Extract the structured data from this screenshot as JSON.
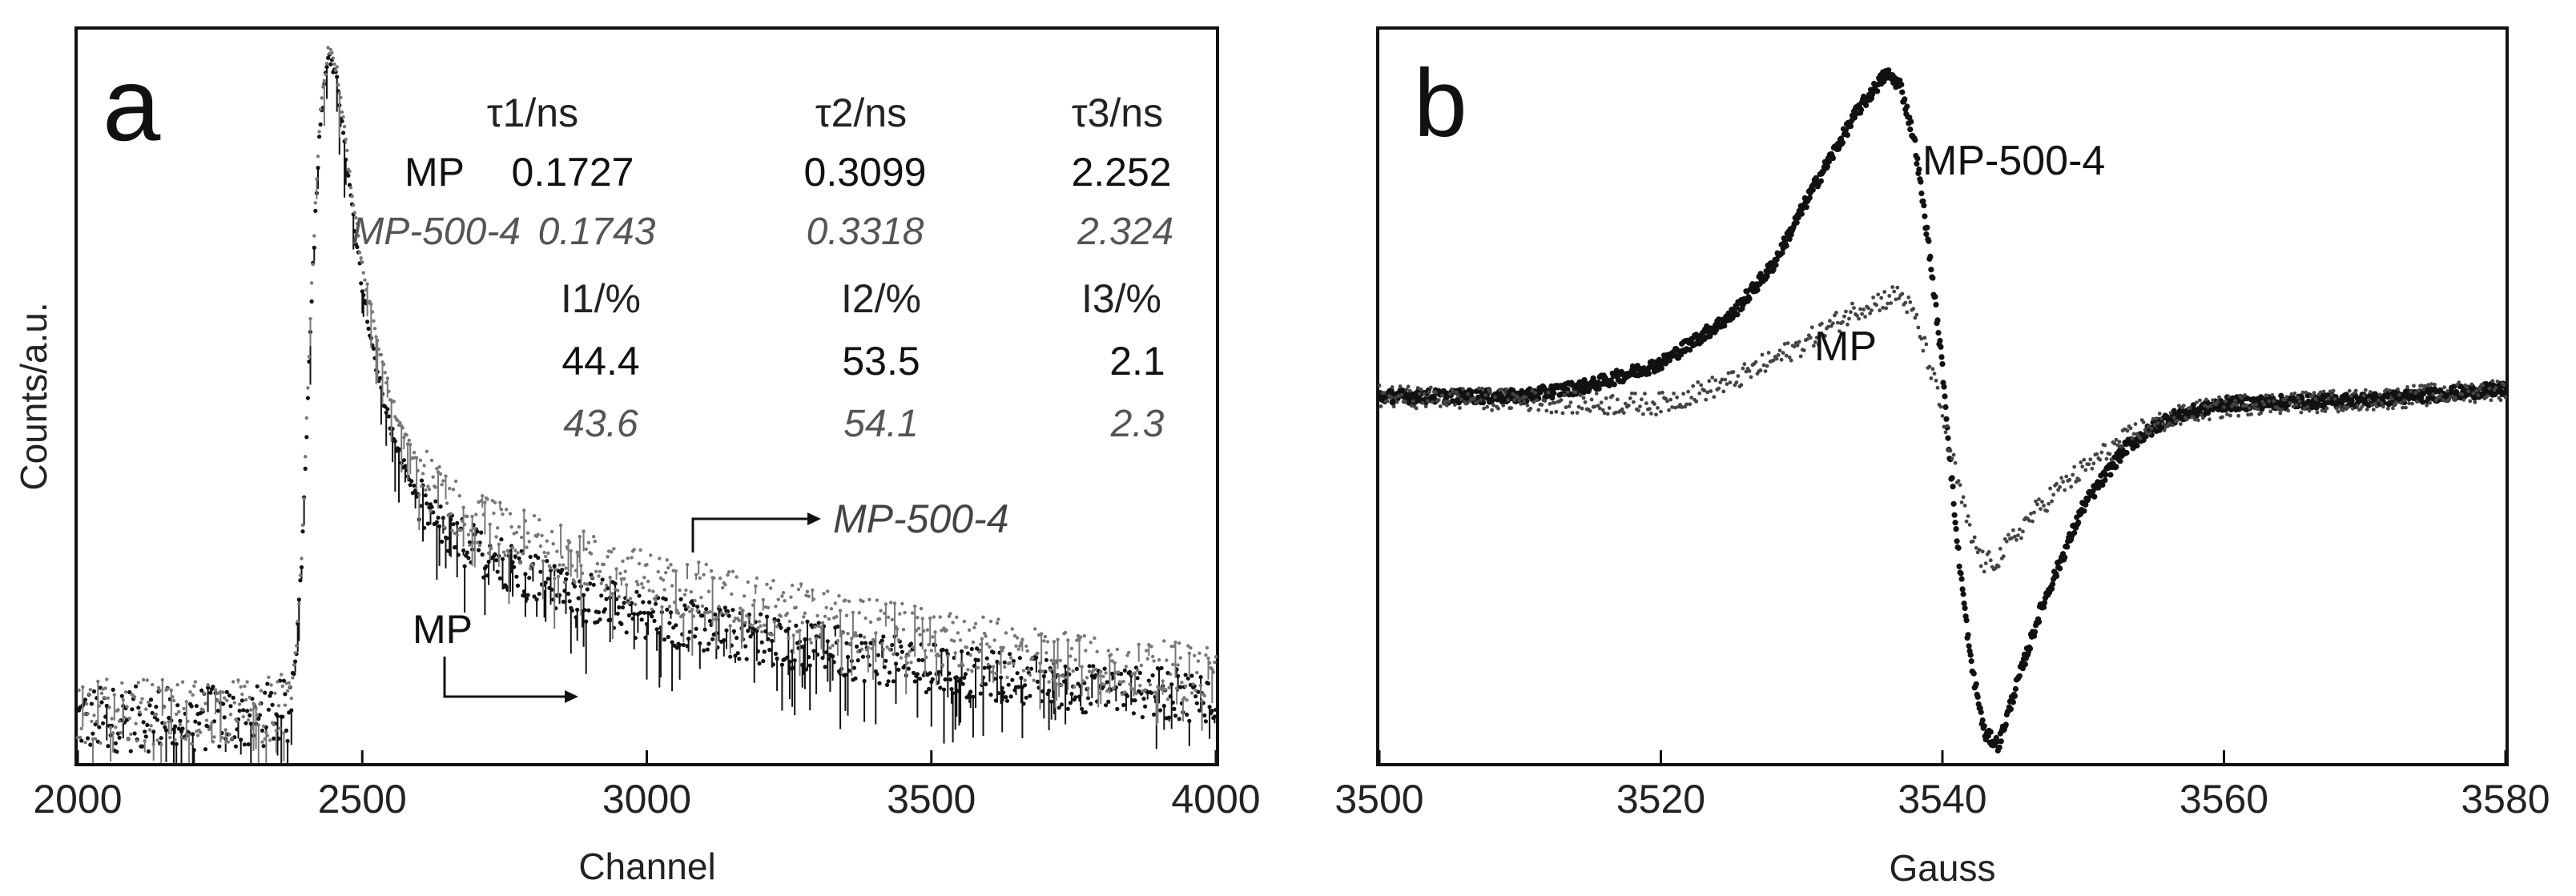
{
  "chart_data": [
    {
      "panel_label": "a",
      "type": "scatter",
      "xlabel": "Channel",
      "ylabel": "Counts/a.u.",
      "xlim": [
        2000,
        4000
      ],
      "xticks": [
        "2000",
        "2500",
        "3000",
        "3500",
        "4000"
      ],
      "ylim": [
        0,
        1
      ],
      "grid": false,
      "series": [
        {
          "name": "MP",
          "color": "#111111",
          "points": [
            [
              2000,
              0.06
            ],
            [
              2100,
              0.06
            ],
            [
              2200,
              0.06
            ],
            [
              2300,
              0.06
            ],
            [
              2370,
              0.07
            ],
            [
              2385,
              0.16
            ],
            [
              2395,
              0.3
            ],
            [
              2410,
              0.62
            ],
            [
              2425,
              0.86
            ],
            [
              2440,
              0.965
            ],
            [
              2455,
              0.93
            ],
            [
              2475,
              0.8
            ],
            [
              2500,
              0.65
            ],
            [
              2530,
              0.52
            ],
            [
              2560,
              0.43
            ],
            [
              2600,
              0.355
            ],
            [
              2650,
              0.31
            ],
            [
              2700,
              0.29
            ],
            [
              2800,
              0.255
            ],
            [
              2900,
              0.225
            ],
            [
              3000,
              0.2
            ],
            [
              3200,
              0.17
            ],
            [
              3500,
              0.13
            ],
            [
              3800,
              0.1
            ],
            [
              4000,
              0.09
            ]
          ]
        },
        {
          "name": "MP-500-4",
          "color": "#777777",
          "points": [
            [
              2000,
              0.07
            ],
            [
              2100,
              0.07
            ],
            [
              2200,
              0.07
            ],
            [
              2300,
              0.07
            ],
            [
              2370,
              0.08
            ],
            [
              2385,
              0.17
            ],
            [
              2395,
              0.31
            ],
            [
              2410,
              0.63
            ],
            [
              2425,
              0.87
            ],
            [
              2440,
              0.975
            ],
            [
              2455,
              0.945
            ],
            [
              2475,
              0.82
            ],
            [
              2500,
              0.68
            ],
            [
              2530,
              0.56
            ],
            [
              2560,
              0.47
            ],
            [
              2600,
              0.4
            ],
            [
              2650,
              0.355
            ],
            [
              2700,
              0.33
            ],
            [
              2800,
              0.3
            ],
            [
              2900,
              0.275
            ],
            [
              3000,
              0.25
            ],
            [
              3200,
              0.215
            ],
            [
              3500,
              0.17
            ],
            [
              3800,
              0.135
            ],
            [
              4000,
              0.12
            ]
          ]
        }
      ],
      "table": {
        "headers_tau": [
          "τ1/ns",
          "τ2/ns",
          "τ3/ns"
        ],
        "headers_i": [
          "I1/%",
          "I2/%",
          "I3/%"
        ],
        "rows_tau": [
          {
            "sample": "MP",
            "values": [
              "0.1727",
              "0.3099",
              "2.252"
            ]
          },
          {
            "sample": "MP-500-4",
            "values": [
              "0.1743",
              "0.3318",
              "2.324"
            ]
          }
        ],
        "rows_i": [
          {
            "sample": "MP",
            "values": [
              "44.4",
              "53.5",
              "2.1"
            ]
          },
          {
            "sample": "MP-500-4",
            "values": [
              "43.6",
              "54.1",
              "2.3"
            ]
          }
        ]
      },
      "annotations": [
        "MP",
        "MP-500-4"
      ]
    },
    {
      "panel_label": "b",
      "type": "line",
      "xlabel": "Gauss",
      "ylabel": "",
      "xlim": [
        3500,
        3580
      ],
      "xticks": [
        "3500",
        "3520",
        "3540",
        "3560",
        "3580"
      ],
      "ylim": [
        -1,
        1
      ],
      "grid": false,
      "series": [
        {
          "name": "MP-500-4",
          "color": "#111111",
          "points": [
            [
              3500,
              0.0
            ],
            [
              3510,
              0.0
            ],
            [
              3515,
              0.03
            ],
            [
              3520,
              0.09
            ],
            [
              3525,
              0.22
            ],
            [
              3528,
              0.36
            ],
            [
              3531,
              0.58
            ],
            [
              3534,
              0.78
            ],
            [
              3536,
              0.88
            ],
            [
              3537,
              0.85
            ],
            [
              3538,
              0.7
            ],
            [
              3539,
              0.42
            ],
            [
              3540,
              0.08
            ],
            [
              3541,
              -0.38
            ],
            [
              3542,
              -0.72
            ],
            [
              3543,
              -0.92
            ],
            [
              3544,
              -0.95
            ],
            [
              3545,
              -0.82
            ],
            [
              3547,
              -0.58
            ],
            [
              3550,
              -0.3
            ],
            [
              3553,
              -0.14
            ],
            [
              3556,
              -0.06
            ],
            [
              3560,
              -0.02
            ],
            [
              3570,
              -0.01
            ],
            [
              3580,
              0.02
            ]
          ]
        },
        {
          "name": "MP",
          "color": "#444444",
          "points": [
            [
              3500,
              0.0
            ],
            [
              3510,
              -0.01
            ],
            [
              3515,
              -0.02
            ],
            [
              3520,
              -0.02
            ],
            [
              3525,
              0.04
            ],
            [
              3530,
              0.14
            ],
            [
              3534,
              0.24
            ],
            [
              3537,
              0.28
            ],
            [
              3538,
              0.22
            ],
            [
              3539,
              0.1
            ],
            [
              3540,
              -0.05
            ],
            [
              3541,
              -0.22
            ],
            [
              3542,
              -0.38
            ],
            [
              3543,
              -0.46
            ],
            [
              3544,
              -0.44
            ],
            [
              3546,
              -0.34
            ],
            [
              3548,
              -0.26
            ],
            [
              3551,
              -0.17
            ],
            [
              3554,
              -0.09
            ],
            [
              3558,
              -0.04
            ],
            [
              3562,
              -0.02
            ],
            [
              3570,
              -0.01
            ],
            [
              3580,
              0.02
            ]
          ]
        }
      ],
      "annotations": [
        "MP-500-4",
        "MP"
      ]
    }
  ]
}
